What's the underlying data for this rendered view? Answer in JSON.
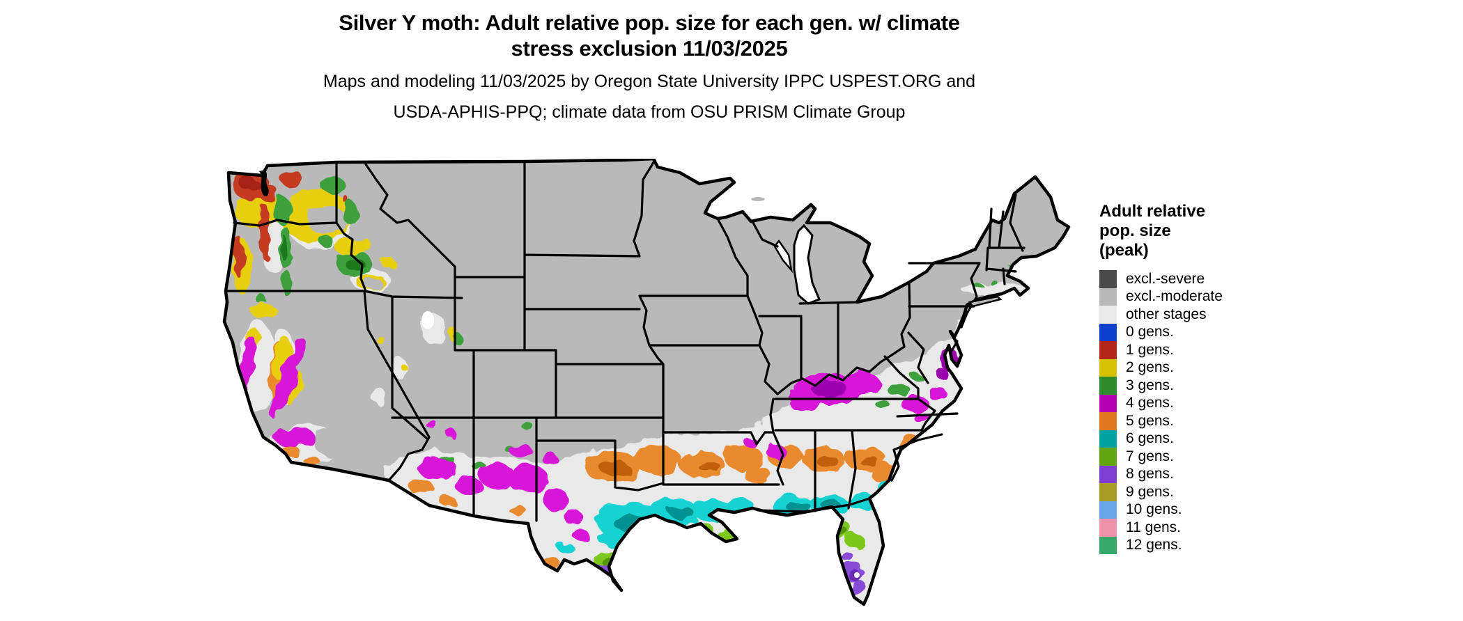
{
  "title": {
    "line1": "Silver Y moth: Adult relative pop. size for each gen. w/ climate",
    "line2": "stress exclusion 11/03/2025"
  },
  "subtitle": {
    "line1": "Maps and modeling 11/03/2025 by Oregon State University IPPC USPEST.ORG and",
    "line2": "USDA-APHIS-PPQ; climate data from OSU PRISM Climate Group"
  },
  "legend": {
    "title_line1": "Adult relative",
    "title_line2": "pop. size",
    "title_line3": "(peak)",
    "items": [
      {
        "label": "excl.-severe",
        "color": "#4a4a4a"
      },
      {
        "label": "excl.-moderate",
        "color": "#b9b9b9"
      },
      {
        "label": "other stages",
        "color": "#e9e9e9"
      },
      {
        "label": "0 gens.",
        "color": "#0b41cc"
      },
      {
        "label": "1 gens.",
        "color": "#b3261a"
      },
      {
        "label": "2 gens.",
        "color": "#d8c004"
      },
      {
        "label": "3 gens.",
        "color": "#2e8b2e"
      },
      {
        "label": "4 gens.",
        "color": "#b400b4"
      },
      {
        "label": "5 gens.",
        "color": "#de7921"
      },
      {
        "label": "6 gens.",
        "color": "#00a2a2"
      },
      {
        "label": "7 gens.",
        "color": "#62a511"
      },
      {
        "label": "8 gens.",
        "color": "#7e3ed1"
      },
      {
        "label": "9 gens.",
        "color": "#a89b26"
      },
      {
        "label": "10 gens.",
        "color": "#6aa5e8"
      },
      {
        "label": "11 gens.",
        "color": "#ef93aa"
      },
      {
        "label": "12 gens.",
        "color": "#38a86b"
      }
    ]
  },
  "colors": {
    "outline": "#000000",
    "water": "#ffffff",
    "excl_severe": "#4a4a4a",
    "excl_moderate": "#b9b9b9",
    "other_stages": "#e9e9e9",
    "gens1": "#c53a22",
    "gens1_dark": "#a52312",
    "gens2": "#e8cf10",
    "gens3": "#3da03d",
    "gens3_dark": "#1e7a1e",
    "gens4": "#d812d8",
    "gens4_dark": "#9c04ae",
    "gens5": "#ea8a2e",
    "gens5_dark": "#c express5e10",
    "gens6": "#12d2d2",
    "gens6_dark": "#009191",
    "gens7": "#7ec81e",
    "gens7_dark": "#559608",
    "gens8": "#8a4cd8",
    "gens8_dark": "#6c2cba",
    "gens9": "#a89b26"
  }
}
